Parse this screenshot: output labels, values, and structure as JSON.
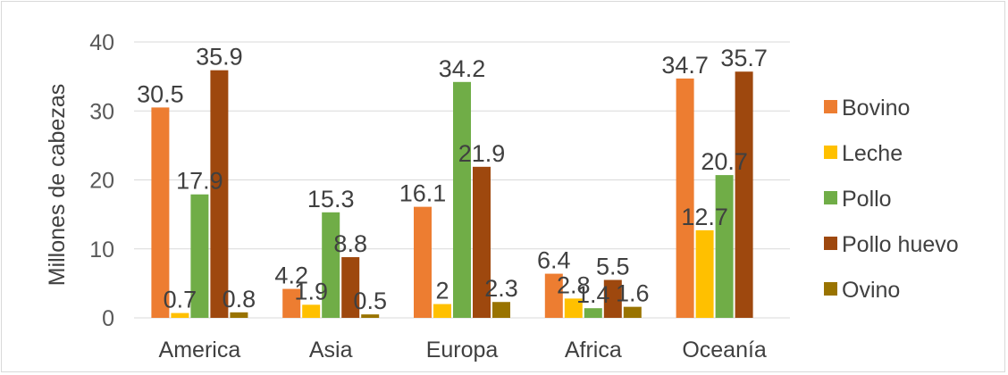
{
  "chart_data": {
    "type": "bar",
    "title": "",
    "xlabel": "",
    "ylabel": "Millones de cabezas",
    "ylim": [
      0,
      40
    ],
    "yticks": [
      "0",
      "10",
      "20",
      "30",
      "40"
    ],
    "grid": true,
    "legend_position": "right",
    "categories": [
      "America",
      "Asia",
      "Europa",
      "Africa",
      "Oceanía"
    ],
    "series": [
      {
        "name": "Bovino",
        "color": "#ed7d31",
        "values": [
          30.5,
          4.2,
          16.1,
          6.4,
          34.7
        ],
        "labels": [
          "30.5",
          "4.2",
          "16.1",
          "6.4",
          "34.7"
        ]
      },
      {
        "name": "Leche",
        "color": "#ffc000",
        "values": [
          0.7,
          1.9,
          2,
          2.8,
          12.7
        ],
        "labels": [
          "0.7",
          "1.9",
          "2",
          "2.8",
          "12.7"
        ]
      },
      {
        "name": "Pollo",
        "color": "#70ad47",
        "values": [
          17.9,
          15.3,
          34.2,
          1.4,
          20.7
        ],
        "labels": [
          "17.9",
          "15.3",
          "34.2",
          "1.4",
          "20.7"
        ]
      },
      {
        "name": "Pollo huevo",
        "color": "#9e480e",
        "values": [
          35.9,
          8.8,
          21.9,
          5.5,
          35.7
        ],
        "labels": [
          "35.9",
          "8.8",
          "21.9",
          "5.5",
          "35.7"
        ]
      },
      {
        "name": "Ovino",
        "color": "#997300",
        "values": [
          0.8,
          0.5,
          2.3,
          1.6,
          0
        ],
        "labels": [
          "0.8",
          "0.5",
          "2.3",
          "1.6",
          ""
        ]
      }
    ]
  }
}
